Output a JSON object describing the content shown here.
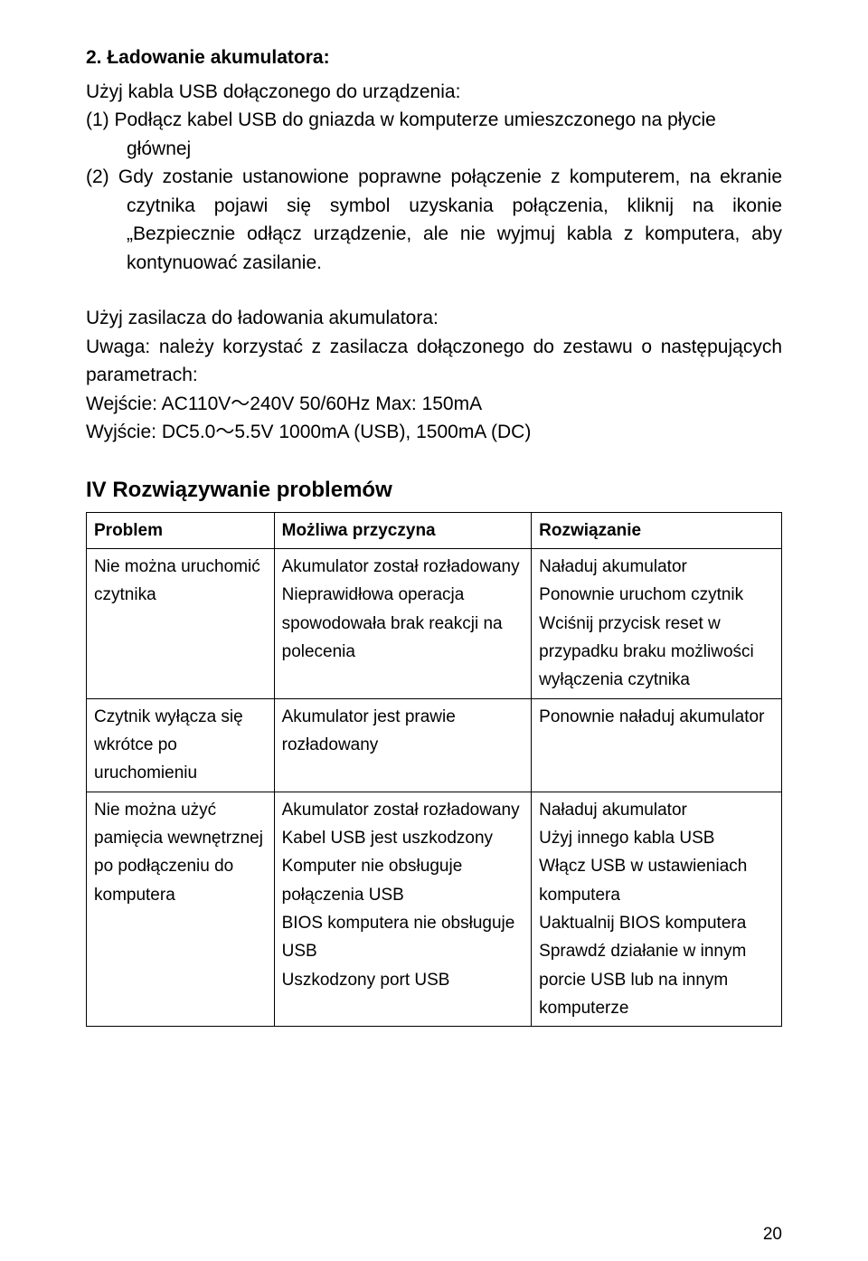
{
  "section_heading": "2. Ładowanie akumulatora:",
  "intro_line": "Użyj kabla USB dołączonego do urządzenia:",
  "steps": [
    "(1)  Podłącz kabel USB do gniazda w komputerze umieszczonego na płycie głównej",
    "(2)  Gdy zostanie ustanowione poprawne połączenie z komputerem, na ekranie czytnika pojawi się symbol uzyskania połączenia, kliknij na ikonie „Bezpiecznie odłącz urządzenie, ale nie wyjmuj kabla z komputera, aby kontynuować zasilanie."
  ],
  "charger_heading": "Użyj zasilacza do ładowania akumulatora:",
  "charger_note": "Uwaga: należy korzystać z zasilacza dołączonego do zestawu o następujących parametrach:",
  "input_spec": "Wejście: AC110V～240V 50/60Hz Max: 150mA",
  "output_spec": "Wyjście: DC5.0～5.5V 1000mA (USB), 1500mA (DC)",
  "troubleshoot_heading": "IV Rozwiązywanie problemów",
  "table": {
    "headers": [
      "Problem",
      "Możliwa przyczyna",
      "Rozwiązanie"
    ],
    "rows": [
      [
        "Nie można uruchomić czytnika",
        "Akumulator został rozładowany\nNieprawidłowa operacja spowodowała brak reakcji na polecenia",
        "Naładuj akumulator\nPonownie uruchom czytnik\nWciśnij przycisk reset w przypadku braku możliwości wyłączenia czytnika"
      ],
      [
        "Czytnik wyłącza się wkrótce po uruchomieniu",
        "Akumulator jest prawie rozładowany",
        "Ponownie naładuj akumulator"
      ],
      [
        "Nie można użyć pamięcia wewnętrznej po podłączeniu do komputera",
        "Akumulator został rozładowany\nKabel USB jest uszkodzony\nKomputer nie obsługuje połączenia USB\nBIOS komputera nie obsługuje USB\nUszkodzony port USB",
        "Naładuj akumulator\nUżyj innego kabla USB\nWłącz USB w ustawieniach komputera\nUaktualnij BIOS komputera\nSprawdź działanie w innym porcie USB lub na innym komputerze"
      ]
    ]
  },
  "page_number": "20"
}
